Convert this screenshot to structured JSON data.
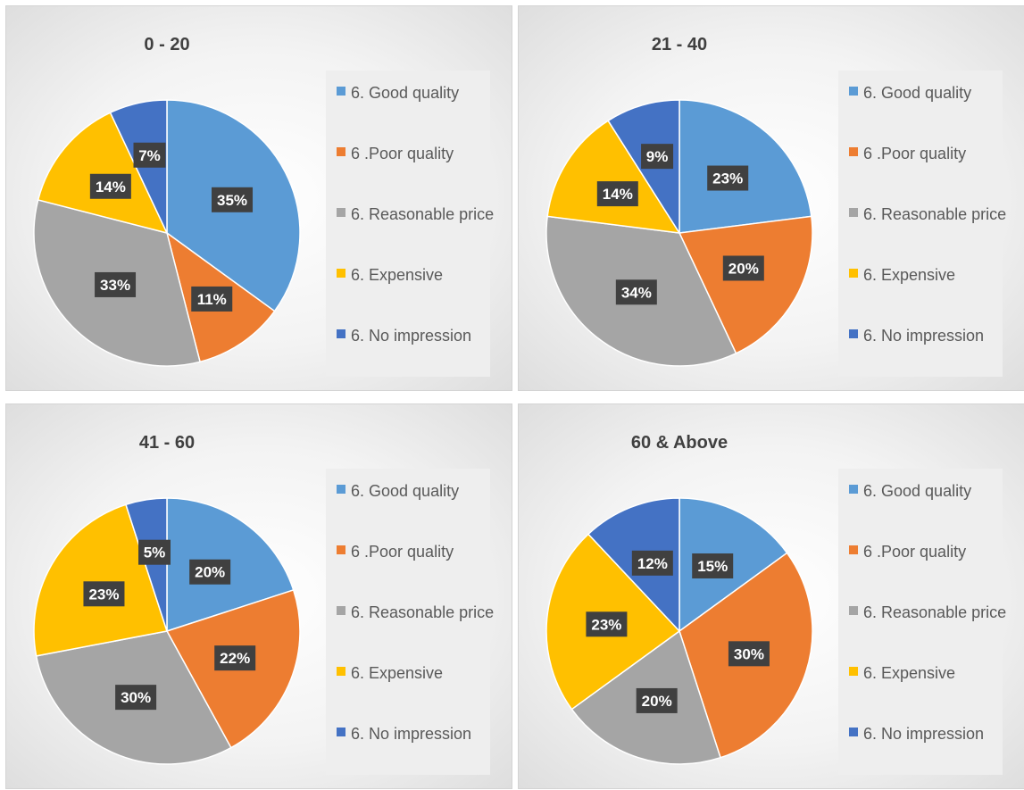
{
  "legend_labels": [
    "6. Good quality",
    "6 .Poor quality",
    "6. Reasonable price",
    "6. Expensive",
    "6. No impression"
  ],
  "colors": [
    "#5B9BD5",
    "#ED7D31",
    "#A5A5A5",
    "#FFC000",
    "#4472C4"
  ],
  "chart_data": [
    {
      "type": "pie",
      "title": "0 - 20",
      "categories": [
        "6. Good quality",
        "6 .Poor quality",
        "6. Reasonable price",
        "6. Expensive",
        "6. No impression"
      ],
      "values": [
        35,
        11,
        33,
        14,
        7
      ],
      "data_labels": [
        "35%",
        "11%",
        "33%",
        "14%",
        "7%"
      ],
      "legend": "right"
    },
    {
      "type": "pie",
      "title": "21 - 40",
      "categories": [
        "6. Good quality",
        "6 .Poor quality",
        "6. Reasonable price",
        "6. Expensive",
        "6. No impression"
      ],
      "values": [
        23,
        20,
        34,
        14,
        9
      ],
      "data_labels": [
        "23%",
        "20%",
        "34%",
        "14%",
        "9%"
      ],
      "legend": "right"
    },
    {
      "type": "pie",
      "title": "41 - 60",
      "categories": [
        "6. Good quality",
        "6 .Poor quality",
        "6. Reasonable price",
        "6. Expensive",
        "6. No impression"
      ],
      "values": [
        20,
        22,
        30,
        23,
        5
      ],
      "data_labels": [
        "20%",
        "22%",
        "30%",
        "23%",
        "5%"
      ],
      "legend": "right"
    },
    {
      "type": "pie",
      "title": "60 & Above",
      "categories": [
        "6. Good quality",
        "6 .Poor quality",
        "6. Reasonable price",
        "6. Expensive",
        "6. No impression"
      ],
      "values": [
        15,
        30,
        20,
        23,
        12
      ],
      "data_labels": [
        "15%",
        "30%",
        "20%",
        "23%",
        "12%"
      ],
      "legend": "right"
    }
  ]
}
